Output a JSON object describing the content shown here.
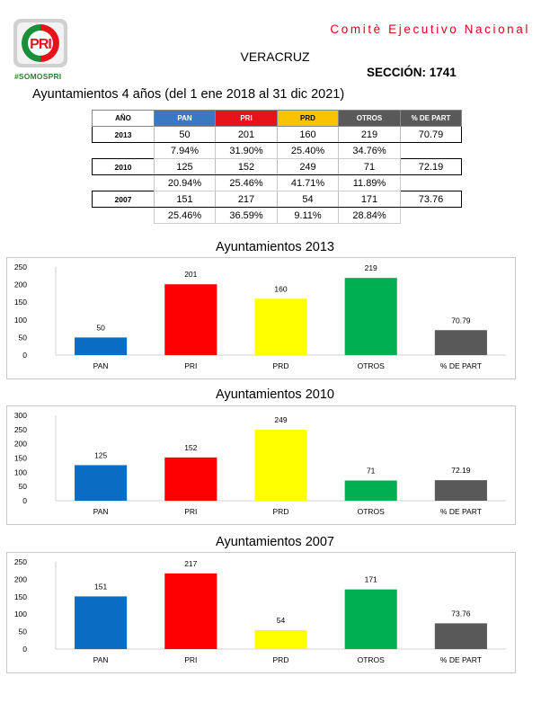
{
  "header": {
    "logo_text": "PRI",
    "hashtag": "#SOMOSPRI",
    "organization": "Comitè Ejecutivo Nacional",
    "state": "VERACRUZ",
    "section": "SECCIÓN: 1741",
    "subtitle": "Ayuntamientos 4 años (del 1 ene 2018 al 31 dic 2021)"
  },
  "colors": {
    "PAN": "#0b6cc4",
    "PRI": "#ff0000",
    "PRD": "#ffff00",
    "OTROS": "#00b050",
    "% DE PART": "#595959"
  },
  "table": {
    "headers": [
      "AÑO",
      "PAN",
      "PRI",
      "PRD",
      "OTROS",
      "% DE PART"
    ],
    "rows": [
      {
        "year": "2013",
        "votes": [
          "50",
          "201",
          "160",
          "219"
        ],
        "part": "70.79",
        "pcts": [
          "7.94%",
          "31.90%",
          "25.40%",
          "34.76%"
        ]
      },
      {
        "year": "2010",
        "votes": [
          "125",
          "152",
          "249",
          "71"
        ],
        "part": "72.19",
        "pcts": [
          "20.94%",
          "25.46%",
          "41.71%",
          "11.89%"
        ]
      },
      {
        "year": "2007",
        "votes": [
          "151",
          "217",
          "54",
          "171"
        ],
        "part": "73.76",
        "pcts": [
          "25.46%",
          "36.59%",
          "9.11%",
          "28.84%"
        ]
      }
    ]
  },
  "chart_data": [
    {
      "type": "bar",
      "title": "Ayuntamientos  2013",
      "categories": [
        "PAN",
        "PRI",
        "PRD",
        "OTROS",
        "% DE PART"
      ],
      "values": [
        50,
        201,
        160,
        219,
        70.79
      ],
      "labels": [
        "50",
        "201",
        "160",
        "219",
        "70.79"
      ],
      "ylim": [
        0,
        250
      ],
      "yticks": [
        0,
        50,
        100,
        150,
        200,
        250
      ],
      "grid": false,
      "legend": "none"
    },
    {
      "type": "bar",
      "title": "Ayuntamientos 2010",
      "categories": [
        "PAN",
        "PRI",
        "PRD",
        "OTROS",
        "% DE PART"
      ],
      "values": [
        125,
        152,
        249,
        71,
        72.19
      ],
      "labels": [
        "125",
        "152",
        "249",
        "71",
        "72.19"
      ],
      "ylim": [
        0,
        300
      ],
      "yticks": [
        0,
        50,
        100,
        150,
        200,
        250,
        300
      ],
      "grid": false,
      "legend": "none"
    },
    {
      "type": "bar",
      "title": "Ayuntamientos 2007",
      "categories": [
        "PAN",
        "PRI",
        "PRD",
        "OTROS",
        "% DE PART"
      ],
      "values": [
        151,
        217,
        54,
        171,
        73.76
      ],
      "labels": [
        "151",
        "217",
        "54",
        "171",
        "73.76"
      ],
      "ylim": [
        0,
        250
      ],
      "yticks": [
        0,
        50,
        100,
        150,
        200,
        250
      ],
      "grid": false,
      "legend": "none"
    }
  ]
}
